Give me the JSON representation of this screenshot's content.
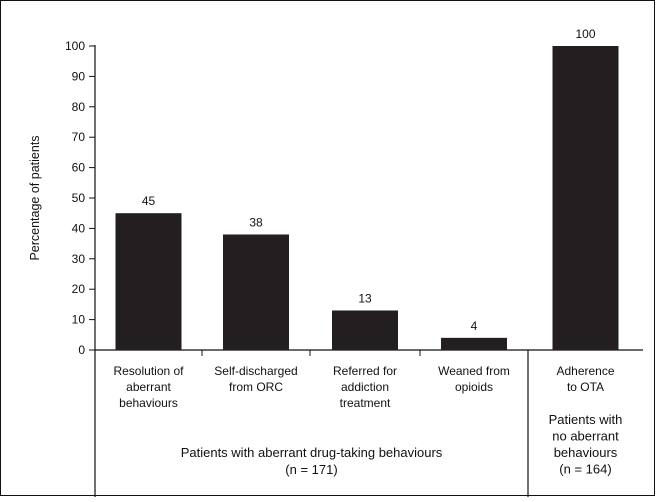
{
  "chart_data": {
    "type": "bar",
    "ylabel": "Percentage of patients",
    "ylim": [
      0,
      100
    ],
    "yticks": [
      0,
      10,
      20,
      30,
      40,
      50,
      60,
      70,
      80,
      90,
      100
    ],
    "categories": [
      [
        "Resolution of",
        "aberrant",
        "behaviours"
      ],
      [
        "Self-discharged",
        "from ORC"
      ],
      [
        "Referred for",
        "addiction",
        "treatment"
      ],
      [
        "Weaned from",
        "opioids"
      ],
      [
        "Adherence",
        "to OTA"
      ]
    ],
    "values": [
      45,
      38,
      13,
      4,
      100
    ],
    "bar_color": "#231f20",
    "grid": false,
    "groups": [
      {
        "label_lines": [
          "Patients with aberrant drug-taking behaviours",
          "(n = 171)"
        ],
        "categories": [
          0,
          1,
          2,
          3
        ]
      },
      {
        "label_lines": [
          "Patients with",
          "no aberrant",
          "behaviours",
          "(n = 164)"
        ],
        "categories": [
          4
        ]
      }
    ]
  }
}
